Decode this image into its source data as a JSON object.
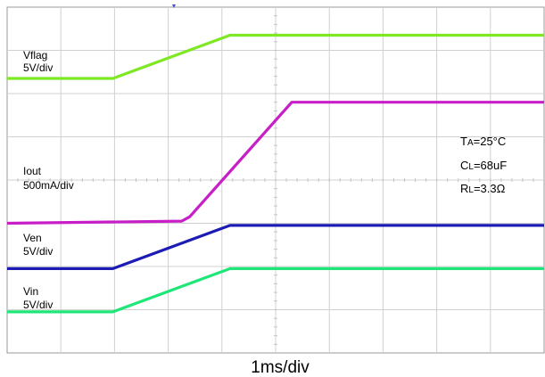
{
  "chart_data": {
    "type": "line",
    "title": "",
    "x_unit": "ms",
    "xlim": [
      0,
      10
    ],
    "x_grid_divisions": 10,
    "y_grid_divisions": 8,
    "xlabel": "1ms/div",
    "grid": true,
    "conditions": [
      {
        "sym": "T",
        "sub": "A",
        "rest": "=25°C"
      },
      {
        "sym": "C",
        "sub": "L",
        "rest": "=68uF"
      },
      {
        "sym": "R",
        "sub": "L",
        "rest": "=3.3Ω"
      }
    ],
    "series": [
      {
        "name": "Vflag",
        "scale": "5V/div",
        "color": "#7ee823",
        "x": [
          0,
          1.97,
          4.15,
          10
        ],
        "y": [
          6.35,
          6.35,
          7.35,
          7.35
        ]
      },
      {
        "name": "Iout",
        "label": "Iout",
        "scale": "500mA/div",
        "color": "#c81ec8",
        "x": [
          0,
          3.25,
          3.4,
          5.3,
          10
        ],
        "y": [
          3.0,
          3.05,
          3.15,
          5.8,
          5.8
        ]
      },
      {
        "name": "Ven",
        "scale": "5V/div",
        "color": "#1c1cb4",
        "x": [
          0,
          1.97,
          4.15,
          10
        ],
        "y": [
          1.95,
          1.95,
          2.95,
          2.95
        ]
      },
      {
        "name": "Vin",
        "scale": "5V/div",
        "color": "#1ee678",
        "x": [
          0,
          1.97,
          4.15,
          10
        ],
        "y": [
          0.95,
          0.95,
          1.95,
          1.95
        ]
      }
    ]
  }
}
